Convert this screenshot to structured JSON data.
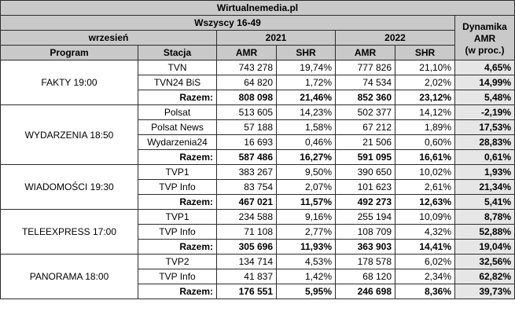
{
  "header": {
    "site": "Wirtualnemedia.pl",
    "group": "Wszyscy 16-49",
    "month": "wrzesień",
    "year_a": "2021",
    "year_b": "2022",
    "dynamics_line1": "Dynamika",
    "dynamics_line2": "AMR",
    "dynamics_line3": "(w proc.)"
  },
  "columns": {
    "program": "Program",
    "station": "Stacja",
    "amr_a": "AMR",
    "shr_a": "SHR",
    "amr_b": "AMR",
    "shr_b": "SHR"
  },
  "groups": [
    {
      "program": "FAKTY 19:00",
      "rows": [
        {
          "station": "TVN",
          "amr21": "743 278",
          "shr21": "19,74%",
          "amr22": "777 826",
          "shr22": "21,10%",
          "dyn": "4,65%"
        },
        {
          "station": "TVN24 BiS",
          "amr21": "64 820",
          "shr21": "1,72%",
          "amr22": "74 534",
          "shr22": "2,02%",
          "dyn": "14,99%"
        },
        {
          "station": "Razem:",
          "amr21": "808 098",
          "shr21": "21,46%",
          "amr22": "852 360",
          "shr22": "23,12%",
          "dyn": "5,48%"
        }
      ]
    },
    {
      "program": "WYDARZENIA 18:50",
      "rows": [
        {
          "station": "Polsat",
          "amr21": "513 605",
          "shr21": "14,23%",
          "amr22": "502 377",
          "shr22": "14,12%",
          "dyn": "-2,19%"
        },
        {
          "station": "Polsat News",
          "amr21": "57 188",
          "shr21": "1,58%",
          "amr22": "67 212",
          "shr22": "1,89%",
          "dyn": "17,53%"
        },
        {
          "station": "Wydarzenia24",
          "amr21": "16 693",
          "shr21": "0,46%",
          "amr22": "21 506",
          "shr22": "0,60%",
          "dyn": "28,83%"
        },
        {
          "station": "Razem:",
          "amr21": "587 486",
          "shr21": "16,27%",
          "amr22": "591 095",
          "shr22": "16,61%",
          "dyn": "0,61%"
        }
      ]
    },
    {
      "program": "WIADOMOŚCI 19:30",
      "rows": [
        {
          "station": "TVP1",
          "amr21": "383 267",
          "shr21": "9,50%",
          "amr22": "390 650",
          "shr22": "10,02%",
          "dyn": "1,93%"
        },
        {
          "station": "TVP Info",
          "amr21": "83 754",
          "shr21": "2,07%",
          "amr22": "101 623",
          "shr22": "2,61%",
          "dyn": "21,34%"
        },
        {
          "station": "Razem:",
          "amr21": "467 021",
          "shr21": "11,57%",
          "amr22": "492 273",
          "shr22": "12,63%",
          "dyn": "5,41%"
        }
      ]
    },
    {
      "program": "TELEEXPRESS 17:00",
      "rows": [
        {
          "station": "TVP1",
          "amr21": "234 588",
          "shr21": "9,16%",
          "amr22": "255 194",
          "shr22": "10,09%",
          "dyn": "8,78%"
        },
        {
          "station": "TVP Info",
          "amr21": "71 108",
          "shr21": "2,77%",
          "amr22": "108 709",
          "shr22": "4,32%",
          "dyn": "52,88%"
        },
        {
          "station": "Razem:",
          "amr21": "305 696",
          "shr21": "11,93%",
          "amr22": "363 903",
          "shr22": "14,41%",
          "dyn": "19,04%"
        }
      ]
    },
    {
      "program": "PANORAMA 18:00",
      "rows": [
        {
          "station": "TVP2",
          "amr21": "134 714",
          "shr21": "4,53%",
          "amr22": "178 578",
          "shr22": "6,02%",
          "dyn": "32,56%"
        },
        {
          "station": "TVP Info",
          "amr21": "41 837",
          "shr21": "1,42%",
          "amr22": "68 120",
          "shr22": "2,34%",
          "dyn": "62,82%"
        },
        {
          "station": "Razem:",
          "amr21": "176 551",
          "shr21": "5,95%",
          "amr22": "246 698",
          "shr22": "8,36%",
          "dyn": "39,73%"
        }
      ]
    }
  ]
}
